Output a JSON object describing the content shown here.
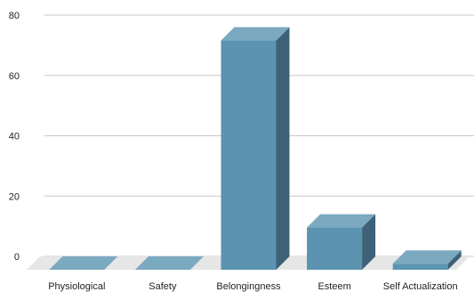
{
  "chart_data": {
    "type": "bar",
    "categories": [
      "Physiological",
      "Safety",
      "Belongingness",
      "Esteem",
      "Self Actualization"
    ],
    "values": [
      0,
      0,
      76,
      14,
      2
    ],
    "title": "",
    "xlabel": "",
    "ylabel": "",
    "ylim": [
      0,
      80
    ],
    "yticks": [
      0,
      20,
      40,
      60,
      80
    ],
    "grid": true,
    "legend": "none",
    "style": "3d",
    "colors": {
      "front": "#5b93b0",
      "top": "#7aa9c0",
      "side": "#3d6278",
      "floor": "#e6e6e6",
      "grid": "#c8c8c8"
    }
  }
}
